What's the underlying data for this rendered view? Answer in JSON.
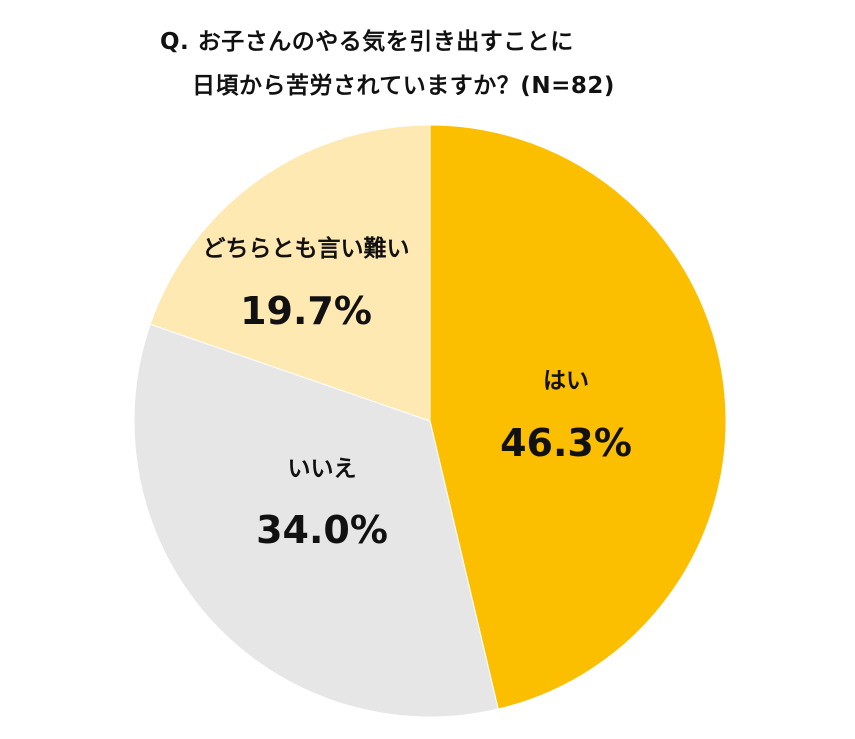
{
  "chart_data": {
    "type": "pie",
    "title_lines": [
      "Q. お子さんのやる気を引き出すことに",
      "日頃から苦労されていますか？(N=82)"
    ],
    "slices": [
      {
        "label": "はい",
        "value": 46.3,
        "display": "46.3%",
        "color": "#fbbf00"
      },
      {
        "label": "いいえ",
        "value": 34.0,
        "display": "34.0%",
        "color": "#e6e6e6"
      },
      {
        "label": "どちらとも言い難い",
        "value": 19.7,
        "display": "19.7%",
        "color": "#ffe9b3"
      }
    ],
    "start_angle": "12 o'clock",
    "direction": "clockwise",
    "legend": "none"
  }
}
